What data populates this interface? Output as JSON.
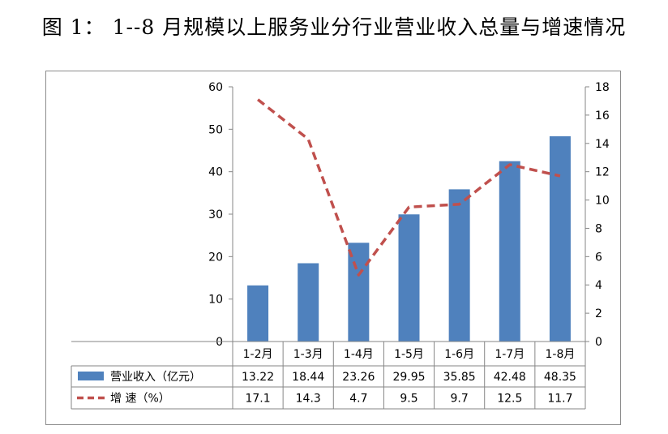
{
  "figure_title": "图 1：  1--8 月规模以上服务业分行业营业收入总量与增速情况",
  "chart_data": {
    "type": "bar",
    "categories": [
      "1-2月",
      "1-3月",
      "1-4月",
      "1-5月",
      "1-6月",
      "1-7月",
      "1-8月"
    ],
    "series": [
      {
        "name": "营业收入（亿元）",
        "type": "bar",
        "axis": "left",
        "color": "#4f81bd",
        "values": [
          13.22,
          18.44,
          23.26,
          29.95,
          35.85,
          42.48,
          48.35
        ],
        "labels": [
          "13.22",
          "18.44",
          "23.26",
          "29.95",
          "35.85",
          "42.48",
          "48.35"
        ]
      },
      {
        "name": "增  速（%）",
        "type": "line",
        "style": "dashed",
        "axis": "right",
        "color": "#c0504d",
        "values": [
          17.1,
          14.3,
          4.7,
          9.5,
          9.7,
          12.5,
          11.7
        ],
        "labels": [
          "17.1",
          "14.3",
          "4.7",
          "9.5",
          "9.7",
          "12.5",
          "11.7"
        ]
      }
    ],
    "y_left": {
      "range": [
        0,
        60
      ],
      "ticks": [
        "0",
        "10",
        "20",
        "30",
        "40",
        "50",
        "60"
      ]
    },
    "y_right": {
      "range": [
        0,
        18
      ],
      "ticks": [
        "0",
        "2",
        "4",
        "6",
        "8",
        "10",
        "12",
        "14",
        "16",
        "18"
      ]
    },
    "grid": false,
    "legend": "data-table-below"
  }
}
